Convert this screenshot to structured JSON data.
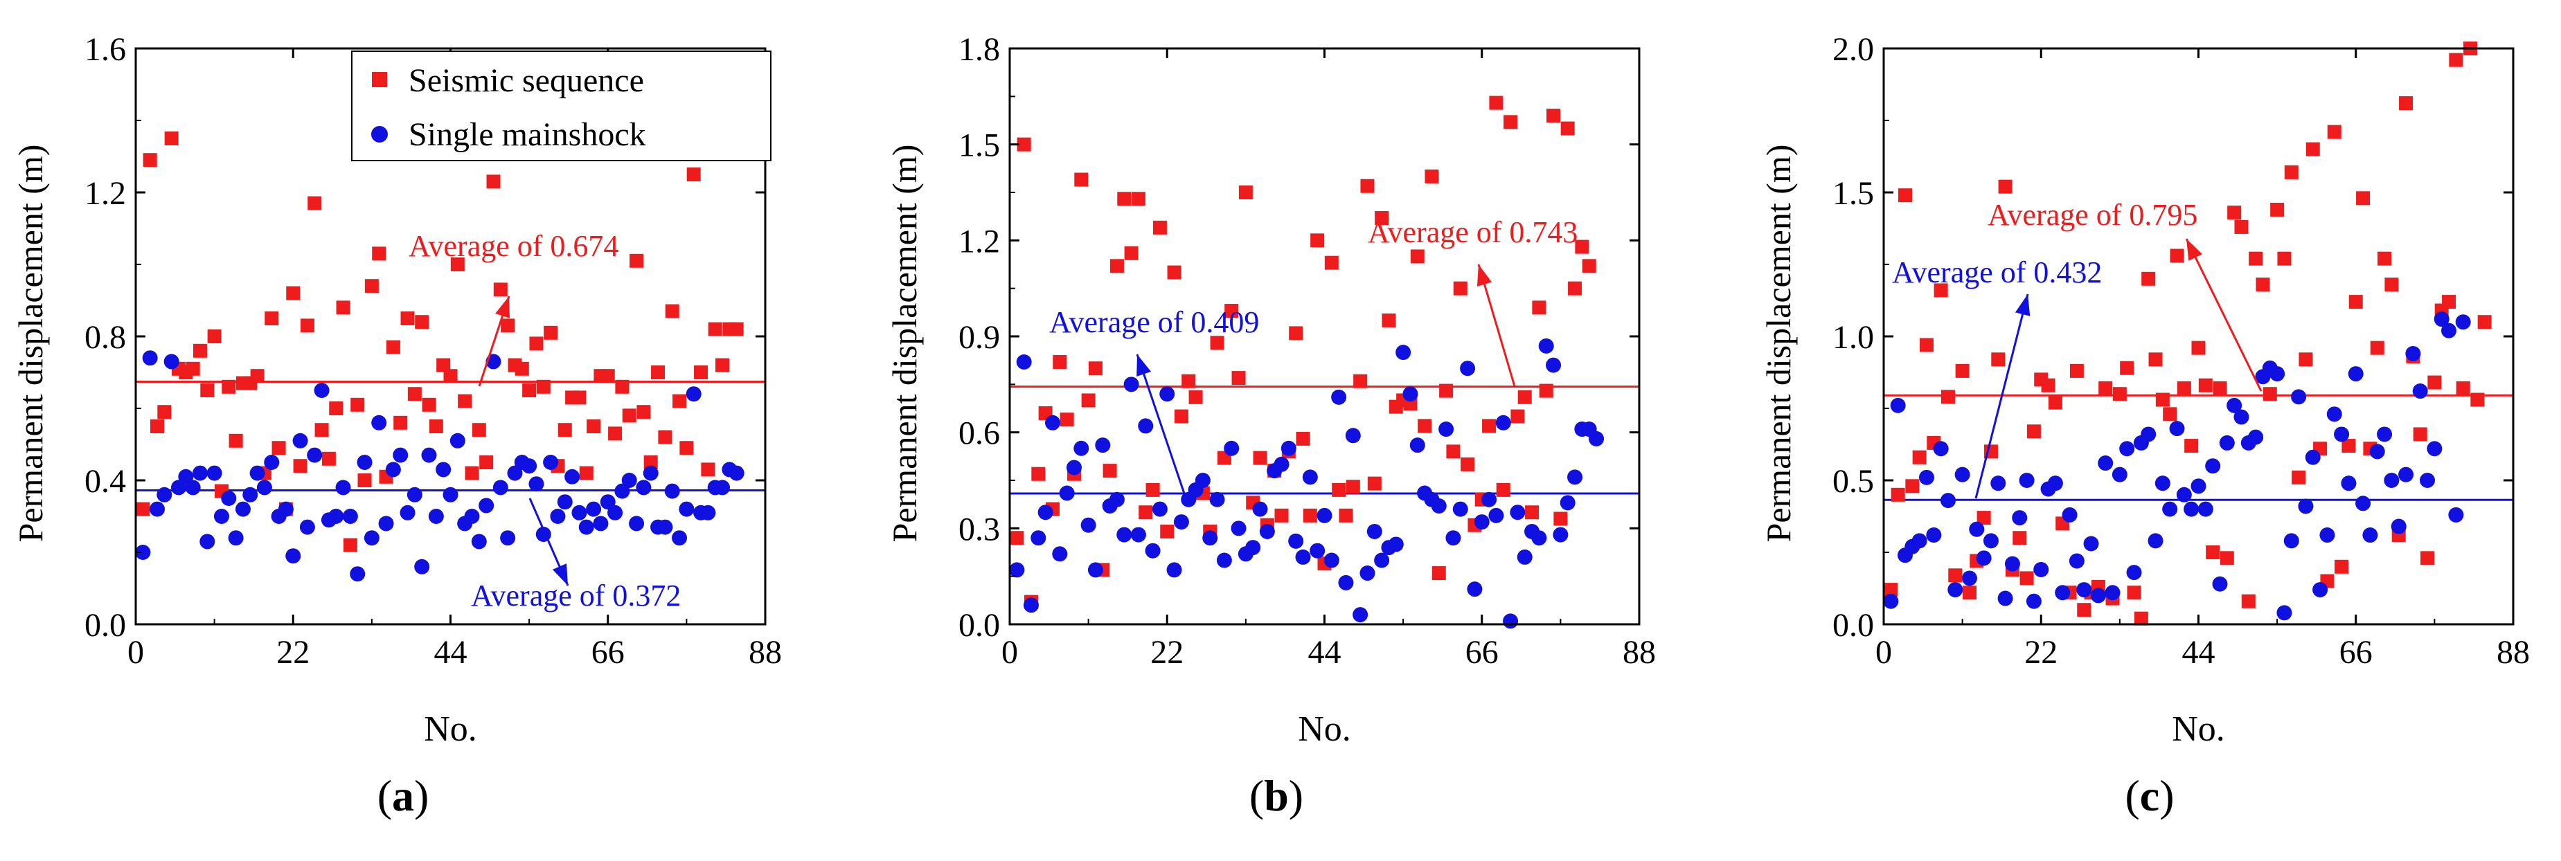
{
  "colors": {
    "sequence": "#ee1c1c",
    "mainshock": "#1010e0",
    "axis": "#000000"
  },
  "chart_data": [
    {
      "type": "scatter",
      "panel": "(a)",
      "panel_letter": "a",
      "xlabel": "No.",
      "ylabel": "Permanent displacement (m)",
      "xlim": [
        0,
        88
      ],
      "ylim": [
        0,
        1.6
      ],
      "xticks": [
        0,
        22,
        44,
        66,
        88
      ],
      "yticks": [
        0.0,
        0.4,
        0.8,
        1.2,
        1.6
      ],
      "ytick_labels": [
        "0.0",
        "0.4",
        "0.8",
        "1.2",
        "1.6"
      ],
      "legend_position": "top-right",
      "series": [
        {
          "name": "Seismic sequence",
          "key": "sequence",
          "marker": "square",
          "average": 0.674,
          "average_label": "Average of 0.674",
          "values": [
            0.32,
            1.29,
            0.55,
            0.59,
            1.35,
            0.71,
            0.7,
            0.71,
            0.76,
            0.65,
            0.8,
            0.37,
            0.66,
            0.51,
            0.67,
            0.67,
            0.69,
            0.42,
            0.85,
            0.49,
            0.32,
            0.92,
            0.44,
            0.83,
            1.17,
            0.54,
            0.46,
            0.6,
            0.88,
            0.22,
            0.61,
            0.4,
            0.94,
            1.03,
            0.41,
            0.77,
            0.56,
            0.85,
            0.64,
            0.84,
            0.61,
            0.55,
            0.72,
            0.69,
            1.0,
            0.62,
            0.42,
            0.54,
            0.45,
            1.23,
            0.93,
            0.83,
            0.72,
            0.71,
            0.65,
            0.78,
            0.66,
            0.81,
            0.44,
            0.54,
            0.63,
            0.63,
            0.42,
            0.55,
            0.69,
            0.69,
            0.53,
            0.66,
            0.58,
            1.01,
            0.59,
            0.45,
            0.7,
            0.52,
            0.87,
            0.62,
            0.49,
            1.25,
            0.7,
            0.43,
            0.82,
            0.72,
            0.82,
            0.82
          ]
        },
        {
          "name": "Single mainshock",
          "key": "mainshock",
          "marker": "circle",
          "average": 0.372,
          "average_label": "Average of 0.372",
          "values": [
            0.2,
            0.74,
            0.32,
            0.36,
            0.73,
            0.38,
            0.41,
            0.38,
            0.42,
            0.23,
            0.42,
            0.3,
            0.35,
            0.24,
            0.32,
            0.36,
            0.42,
            0.38,
            0.45,
            0.3,
            0.32,
            0.19,
            0.51,
            0.27,
            0.47,
            0.65,
            0.29,
            0.3,
            0.38,
            0.3,
            0.14,
            0.45,
            0.24,
            0.56,
            0.28,
            0.43,
            0.47,
            0.31,
            0.36,
            0.16,
            0.47,
            0.3,
            0.43,
            0.36,
            0.51,
            0.28,
            0.3,
            0.23,
            0.33,
            0.73,
            0.38,
            0.24,
            0.42,
            0.45,
            0.44,
            0.39,
            0.25,
            0.45,
            0.3,
            0.34,
            0.41,
            0.31,
            0.27,
            0.32,
            0.28,
            0.34,
            0.31,
            0.37,
            0.4,
            0.28,
            0.38,
            0.42,
            0.27,
            0.27,
            0.37,
            0.24,
            0.32,
            0.64,
            0.31,
            0.31,
            0.38,
            0.38,
            0.43,
            0.42
          ]
        }
      ]
    },
    {
      "type": "scatter",
      "panel": "(b)",
      "panel_letter": "b",
      "xlabel": "No.",
      "ylabel": "Permanent displacement (m)",
      "xlim": [
        0,
        88
      ],
      "ylim": [
        0,
        1.8
      ],
      "xticks": [
        0,
        22,
        44,
        66,
        88
      ],
      "yticks": [
        0.0,
        0.3,
        0.6,
        0.9,
        1.2,
        1.5,
        1.8
      ],
      "ytick_labels": [
        "0.0",
        "0.3",
        "0.6",
        "0.9",
        "1.2",
        "1.5",
        "1.8"
      ],
      "series": [
        {
          "name": "Seismic sequence",
          "key": "sequence",
          "marker": "square",
          "average": 0.743,
          "average_label": "Average of 0.743",
          "values": [
            0.27,
            1.5,
            0.07,
            0.47,
            0.66,
            0.36,
            0.82,
            0.64,
            0.47,
            1.39,
            0.7,
            0.8,
            0.17,
            0.48,
            1.12,
            1.33,
            1.16,
            1.33,
            0.35,
            0.42,
            1.24,
            0.29,
            1.1,
            0.65,
            0.76,
            0.71,
            0.41,
            0.29,
            0.88,
            0.52,
            0.98,
            0.77,
            1.35,
            0.38,
            0.52,
            0.31,
            0.48,
            0.34,
            0.54,
            0.91,
            0.58,
            0.34,
            1.2,
            0.19,
            1.13,
            0.42,
            0.34,
            0.43,
            0.76,
            1.37,
            0.44,
            1.27,
            0.95,
            0.68,
            0.7,
            0.69,
            1.15,
            0.62,
            1.4,
            0.16,
            0.73,
            0.54,
            1.05,
            0.5,
            0.31,
            0.39,
            0.62,
            1.63,
            0.42,
            1.57,
            0.65,
            0.71,
            0.35,
            0.99,
            0.73,
            1.59,
            0.33,
            1.55,
            1.05,
            1.18,
            1.12
          ]
        },
        {
          "name": "Single mainshock",
          "key": "mainshock",
          "marker": "circle",
          "average": 0.409,
          "average_label": "Average of 0.409",
          "values": [
            0.17,
            0.82,
            0.06,
            0.27,
            0.35,
            0.63,
            0.22,
            0.41,
            0.49,
            0.55,
            0.31,
            0.17,
            0.56,
            0.37,
            0.39,
            0.28,
            0.75,
            0.28,
            0.62,
            0.23,
            0.36,
            0.72,
            0.17,
            0.32,
            0.39,
            0.42,
            0.45,
            0.27,
            0.39,
            0.2,
            0.55,
            0.3,
            0.22,
            0.24,
            0.36,
            0.29,
            0.48,
            0.5,
            0.55,
            0.26,
            0.21,
            0.46,
            0.23,
            0.34,
            0.2,
            0.71,
            0.13,
            0.59,
            0.03,
            0.16,
            0.29,
            0.2,
            0.24,
            0.25,
            0.85,
            0.72,
            0.56,
            0.41,
            0.39,
            0.37,
            0.61,
            0.27,
            0.36,
            0.8,
            0.11,
            0.32,
            0.39,
            0.34,
            0.63,
            0.01,
            0.35,
            0.21,
            0.29,
            0.27,
            0.87,
            0.81,
            0.28,
            0.38,
            0.46,
            0.61,
            0.61,
            0.58
          ]
        }
      ]
    },
    {
      "type": "scatter",
      "panel": "(c)",
      "panel_letter": "c",
      "xlabel": "No.",
      "ylabel": "Permanent displacement (m)",
      "xlim": [
        0,
        88
      ],
      "ylim": [
        0,
        2.0
      ],
      "xticks": [
        0,
        22,
        44,
        66,
        88
      ],
      "yticks": [
        0.0,
        0.5,
        1.0,
        1.5,
        2.0
      ],
      "ytick_labels": [
        "0.0",
        "0.5",
        "1.0",
        "1.5",
        "2.0"
      ],
      "series": [
        {
          "name": "Seismic sequence",
          "key": "sequence",
          "marker": "square",
          "average": 0.795,
          "average_label": "Average of 0.795",
          "values": [
            0.12,
            0.45,
            1.49,
            0.48,
            0.58,
            0.97,
            0.63,
            1.16,
            0.79,
            0.17,
            0.88,
            0.11,
            0.22,
            0.37,
            0.6,
            0.92,
            1.52,
            0.19,
            0.3,
            0.16,
            0.67,
            0.85,
            0.83,
            0.77,
            0.35,
            0.11,
            0.88,
            0.05,
            0.11,
            0.13,
            0.82,
            0.09,
            0.8,
            0.89,
            0.11,
            0.02,
            1.2,
            0.92,
            0.78,
            0.73,
            1.28,
            0.82,
            0.62,
            0.96,
            0.83,
            0.25,
            0.82,
            0.23,
            1.43,
            1.38,
            0.08,
            1.27,
            1.18,
            0.8,
            1.44,
            1.27,
            1.57,
            0.51,
            0.92,
            1.65,
            0.61,
            0.15,
            1.71,
            0.2,
            0.62,
            1.12,
            1.48,
            0.61,
            0.96,
            1.27,
            1.18,
            0.31,
            1.81,
            0.93,
            0.66,
            0.23,
            0.84,
            1.09,
            1.12,
            1.96,
            0.82,
            2.0,
            0.78,
            1.05
          ]
        },
        {
          "name": "Single mainshock",
          "key": "mainshock",
          "marker": "circle",
          "average": 0.432,
          "average_label": "Average of 0.432",
          "values": [
            0.08,
            0.76,
            0.24,
            0.27,
            0.29,
            0.51,
            0.31,
            0.61,
            0.43,
            0.12,
            0.52,
            0.16,
            0.33,
            0.23,
            0.29,
            0.49,
            0.09,
            0.21,
            0.37,
            0.5,
            0.08,
            0.19,
            0.47,
            0.49,
            0.11,
            0.38,
            0.22,
            0.12,
            0.28,
            0.1,
            0.56,
            0.11,
            0.52,
            0.61,
            0.18,
            0.63,
            0.66,
            0.29,
            0.49,
            0.4,
            0.68,
            0.45,
            0.4,
            0.48,
            0.4,
            0.55,
            0.14,
            0.63,
            0.76,
            0.72,
            0.63,
            0.65,
            0.86,
            0.89,
            0.87,
            0.04,
            0.29,
            0.79,
            0.41,
            0.58,
            0.12,
            0.31,
            0.73,
            0.66,
            0.49,
            0.87,
            0.42,
            0.31,
            0.6,
            0.66,
            0.5,
            0.34,
            0.52,
            0.94,
            0.81,
            0.5,
            0.61,
            1.06,
            1.02,
            0.38,
            1.05
          ]
        }
      ]
    }
  ]
}
